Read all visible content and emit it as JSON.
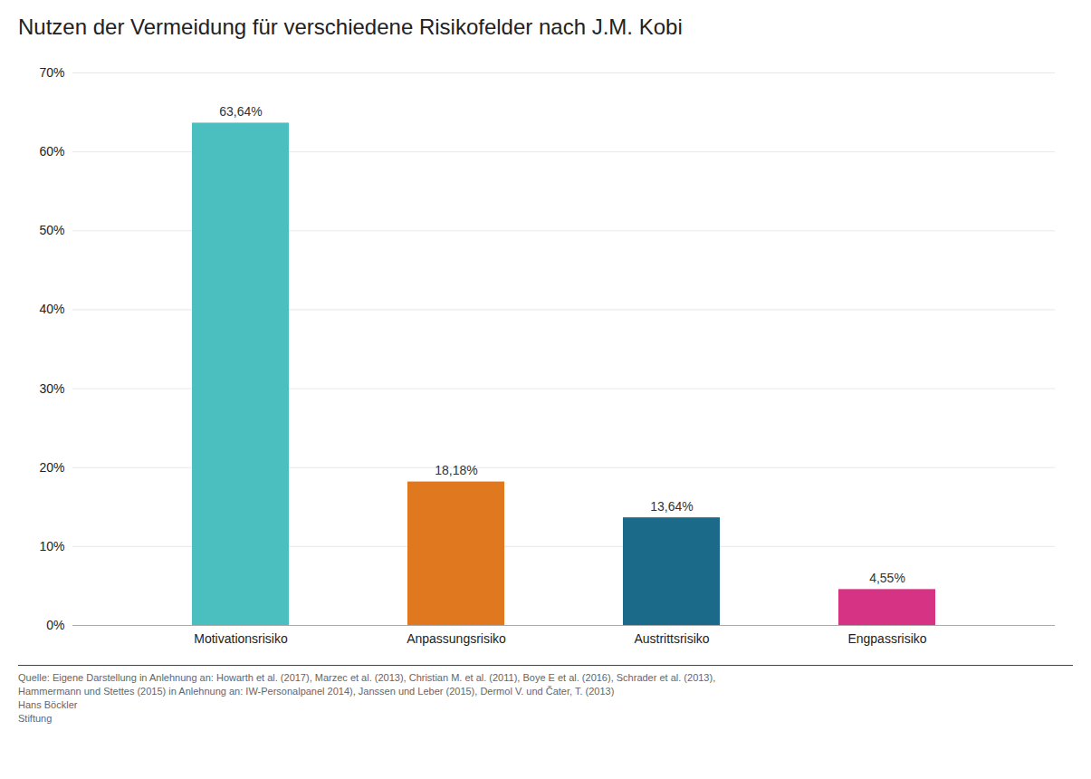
{
  "chart_data": {
    "type": "bar",
    "title": "Nutzen der Vermeidung für verschiedene Risikofelder nach J.M. Kobi",
    "categories": [
      "Motivationsrisiko",
      "Anpassungsrisiko",
      "Austrittsrisiko",
      "Engpassrisiko"
    ],
    "values": [
      63.64,
      18.18,
      13.64,
      4.55
    ],
    "value_labels": [
      "63,64%",
      "18,18%",
      "13,64%",
      "4,55%"
    ],
    "colors": [
      "#4BBFBF",
      "#E07820",
      "#1B6A8A",
      "#D63384"
    ],
    "ylim": [
      0,
      70
    ],
    "yticks": [
      {
        "value": 0,
        "label": "0%"
      },
      {
        "value": 10,
        "label": "10%"
      },
      {
        "value": 20,
        "label": "20%"
      },
      {
        "value": 30,
        "label": "30%"
      },
      {
        "value": 40,
        "label": "40%"
      },
      {
        "value": 50,
        "label": "50%"
      },
      {
        "value": 60,
        "label": "60%"
      },
      {
        "value": 70,
        "label": "70%"
      }
    ],
    "grid": true,
    "data_labels": true,
    "annotations": [
      "Quelle: Eigene Darstellung in Anlehnung an: Howarth et al. (2017), Marzec et al. (2013), Christian M. et al. (2011), Boye E et al. (2016), Schrader et al. (2013),",
      "Hammermann und Stettes (2015) in Anlehnung an: IW-Personalpanel 2014), Janssen und Leber (2015), Dermol V. und Čater, T. (2013)",
      "Hans Böckler",
      "Stiftung"
    ]
  }
}
